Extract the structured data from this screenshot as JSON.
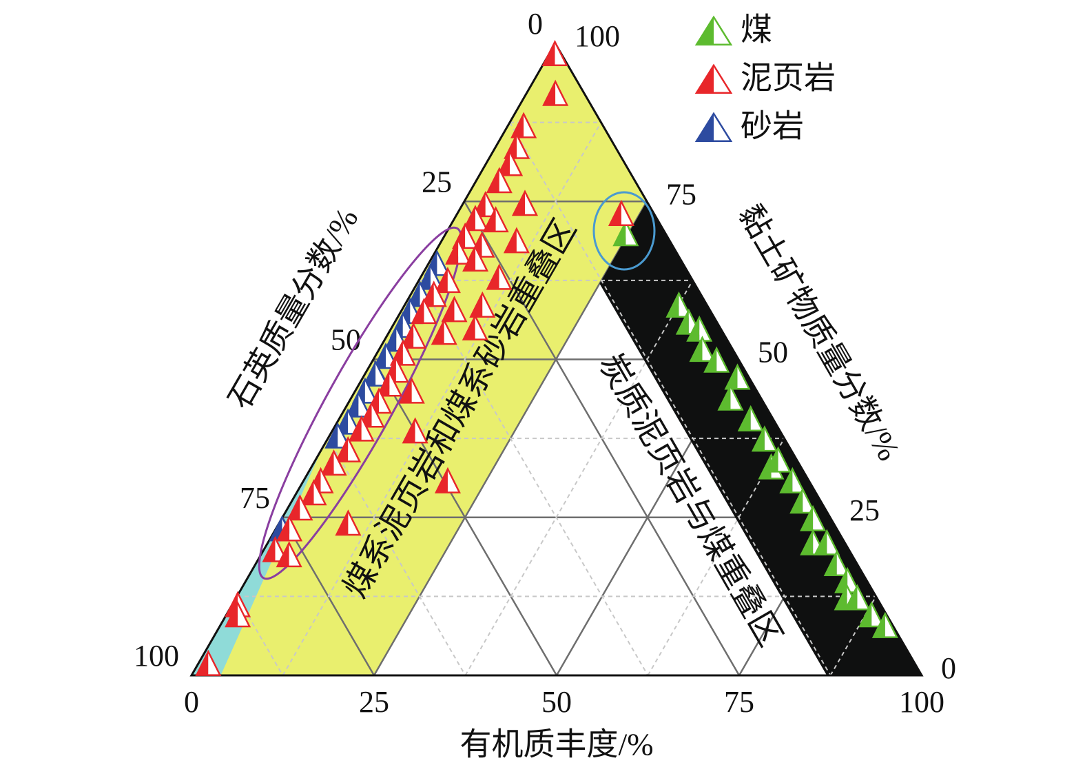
{
  "chart_data": {
    "type": "ternary",
    "grid": true,
    "legend": "upper right",
    "axes": {
      "bottom": {
        "label": "有机质丰度/%",
        "ticks": [
          0,
          25,
          50,
          75,
          100
        ]
      },
      "left": {
        "label": "石英质量分数/%",
        "ticks": [
          0,
          25,
          50,
          75,
          100
        ]
      },
      "right": {
        "label": "黏土矿物质量分数/%",
        "ticks": [
          0,
          25,
          50,
          75,
          100
        ]
      }
    },
    "annotations": [
      {
        "text": "煤系泥页岩和煤系砂岩重叠区",
        "color": "#a5509c"
      },
      {
        "text": "炭质泥页岩与煤重叠区",
        "color": "#4a8fc8"
      }
    ],
    "series": [
      {
        "name": "煤",
        "color": "#5dbb2f",
        "organic": [
          24.8,
          37.7,
          40.4,
          42.4,
          44.4,
          47.2,
          51.4,
          52.1,
          56.5,
          60.0,
          63.1,
          63.5,
          67.1,
          70.1,
          72.9,
          74.8,
          76.7,
          79.7,
          82.5,
          83.8,
          85.2,
          88.5,
          91.2
        ],
        "clay": [
          69.6,
          58.3,
          55.6,
          54.5,
          51.3,
          49.6,
          46.9,
          43.6,
          40.3,
          37.1,
          32.7,
          33.8,
          30.5,
          27.3,
          24.5,
          20.7,
          20.7,
          17.4,
          14.7,
          12.0,
          12.0,
          9.3,
          7.6
        ]
      },
      {
        "name": "泥页岩",
        "color": "#e8262a",
        "organic": [
          0.9,
          4.1,
          2.3,
          3.0,
          3.4,
          3.3,
          8.6,
          3.3,
          3.0,
          5.9,
          10.4,
          3.0,
          6.0,
          3.3,
          6.2,
          10.9,
          4.1,
          3.3,
          10.8,
          7.3,
          3.3,
          11.6,
          7.7,
          3.8,
          3.7,
          4.1,
          4.3,
          7.9,
          4.2,
          4.3,
          11.5,
          4.0,
          3.8,
          2.9,
          19.9,
          2.5,
          2.5,
          1.8,
          9.6,
          2.0,
          1.7,
          4.0,
          0.9,
          1.7,
          1.5,
          22.6
        ],
        "clay": [
          98.1,
          91.8,
          86.7,
          83.4,
          80.7,
          78.0,
          74.4,
          74.2,
          72.0,
          71.8,
          68.5,
          69.2,
          67.8,
          66.7,
          65.6,
          62.7,
          62.2,
          60.0,
          58.3,
          57.6,
          57.3,
          54.7,
          54.0,
          53.4,
          50.7,
          48.0,
          45.8,
          44.7,
          43.1,
          40.9,
          38.4,
          38.7,
          35.4,
          33.3,
          30.5,
          30.5,
          28.6,
          26.2,
          23.8,
          22.9,
          19.6,
          18.8,
          10.9,
          9.3,
          1.6,
          72.8
        ]
      },
      {
        "name": "砂岩",
        "color": "#2d4ba0",
        "organic": [
          1.3,
          1.5,
          1.4,
          1.4,
          1.5,
          1.7,
          1.6,
          1.6,
          1.5,
          1.7,
          1.6,
          1.3,
          1.0
        ],
        "clay": [
          64.9,
          62.7,
          60.0,
          57.3,
          55.1,
          52.9,
          50.2,
          47.4,
          44.7,
          42.5,
          39.8,
          37.6,
          22.9
        ]
      }
    ]
  }
}
